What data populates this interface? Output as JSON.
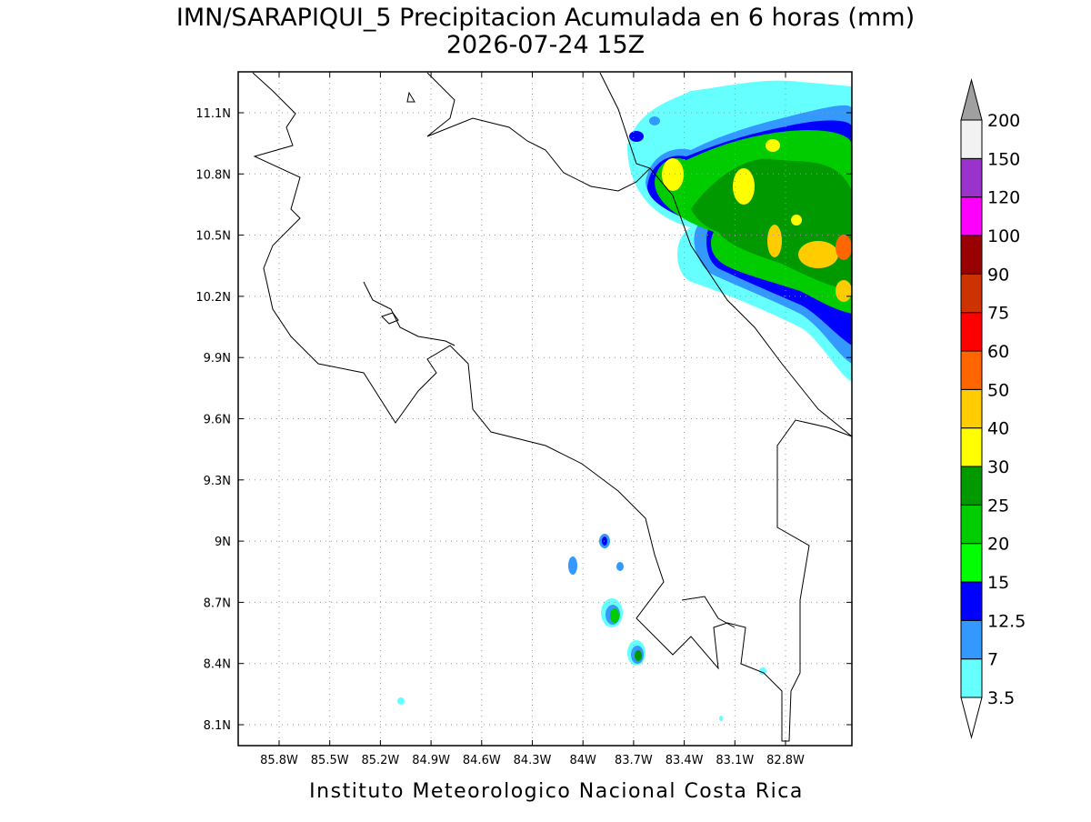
{
  "title": "IMN/SARAPIQUI_5 Precipitacion Acumulada en 6 horas (mm)",
  "subtitle": "2026-07-24 15Z",
  "map": {
    "lon_ticks": [
      "85.8W",
      "85.5W",
      "85.2W",
      "84.9W",
      "84.6W",
      "84.3W",
      "84W",
      "83.7W",
      "83.4W",
      "83.1W",
      "82.8W"
    ],
    "lat_ticks": [
      "11.1N",
      "10.8N",
      "10.5N",
      "10.2N",
      "9.9N",
      "9.6N",
      "9.3N",
      "9N",
      "8.7N",
      "8.4N",
      "8.1N"
    ]
  },
  "colorbar": {
    "levels": [
      3.5,
      7,
      12.5,
      15,
      20,
      25,
      30,
      40,
      50,
      60,
      75,
      90,
      100,
      120,
      150,
      200
    ],
    "colors": [
      "#66ffff",
      "#3399ff",
      "#0000ff",
      "#00ff00",
      "#00cc00",
      "#009900",
      "#ffff00",
      "#ffcc00",
      "#ff6600",
      "#ff0000",
      "#cc3300",
      "#990000",
      "#ff00ff",
      "#9933cc",
      "#f2f2f2"
    ],
    "under_color": "#ffffff",
    "over_color": "#a0a0a0"
  },
  "footer": "Instituto Meteorologico Nacional Costa Rica"
}
